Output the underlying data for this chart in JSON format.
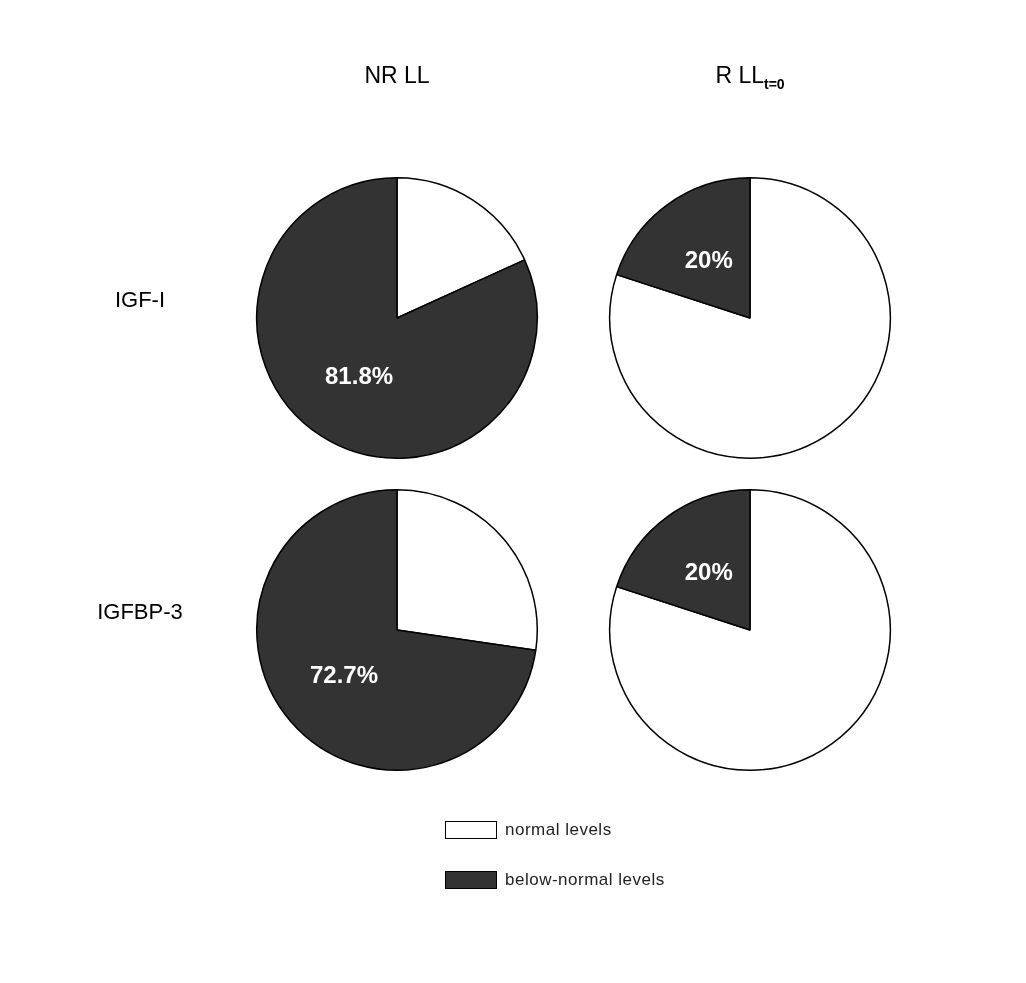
{
  "chart_data": [
    {
      "type": "pie",
      "title": "NR LL",
      "ylabel": "IGF-I",
      "categories": [
        null,
        null
      ],
      "values": [
        18.2,
        81.8
      ],
      "colors": [
        "#ffffff",
        "#333333"
      ],
      "value_labels": [
        null,
        "81.8%"
      ],
      "legend": false
    },
    {
      "type": "pie",
      "title": "R LL$_{t=0}$",
      "categories": [
        null,
        null
      ],
      "values": [
        80,
        20
      ],
      "colors": [
        "#ffffff",
        "#333333"
      ],
      "value_labels": [
        null,
        "20%"
      ],
      "legend": false
    },
    {
      "type": "pie",
      "ylabel": "IGFBP-3",
      "categories": [
        null,
        null
      ],
      "values": [
        27.3,
        72.7
      ],
      "colors": [
        "#ffffff",
        "#333333"
      ],
      "value_labels": [
        null,
        "72.7%"
      ],
      "legend": false
    },
    {
      "type": "pie",
      "categories": [
        "normal levels",
        "below-normal levels"
      ],
      "values": [
        80,
        20
      ],
      "colors": [
        "#ffffff",
        "#333333"
      ],
      "value_labels": [
        null,
        "20%"
      ],
      "legend": "bottom"
    }
  ]
}
